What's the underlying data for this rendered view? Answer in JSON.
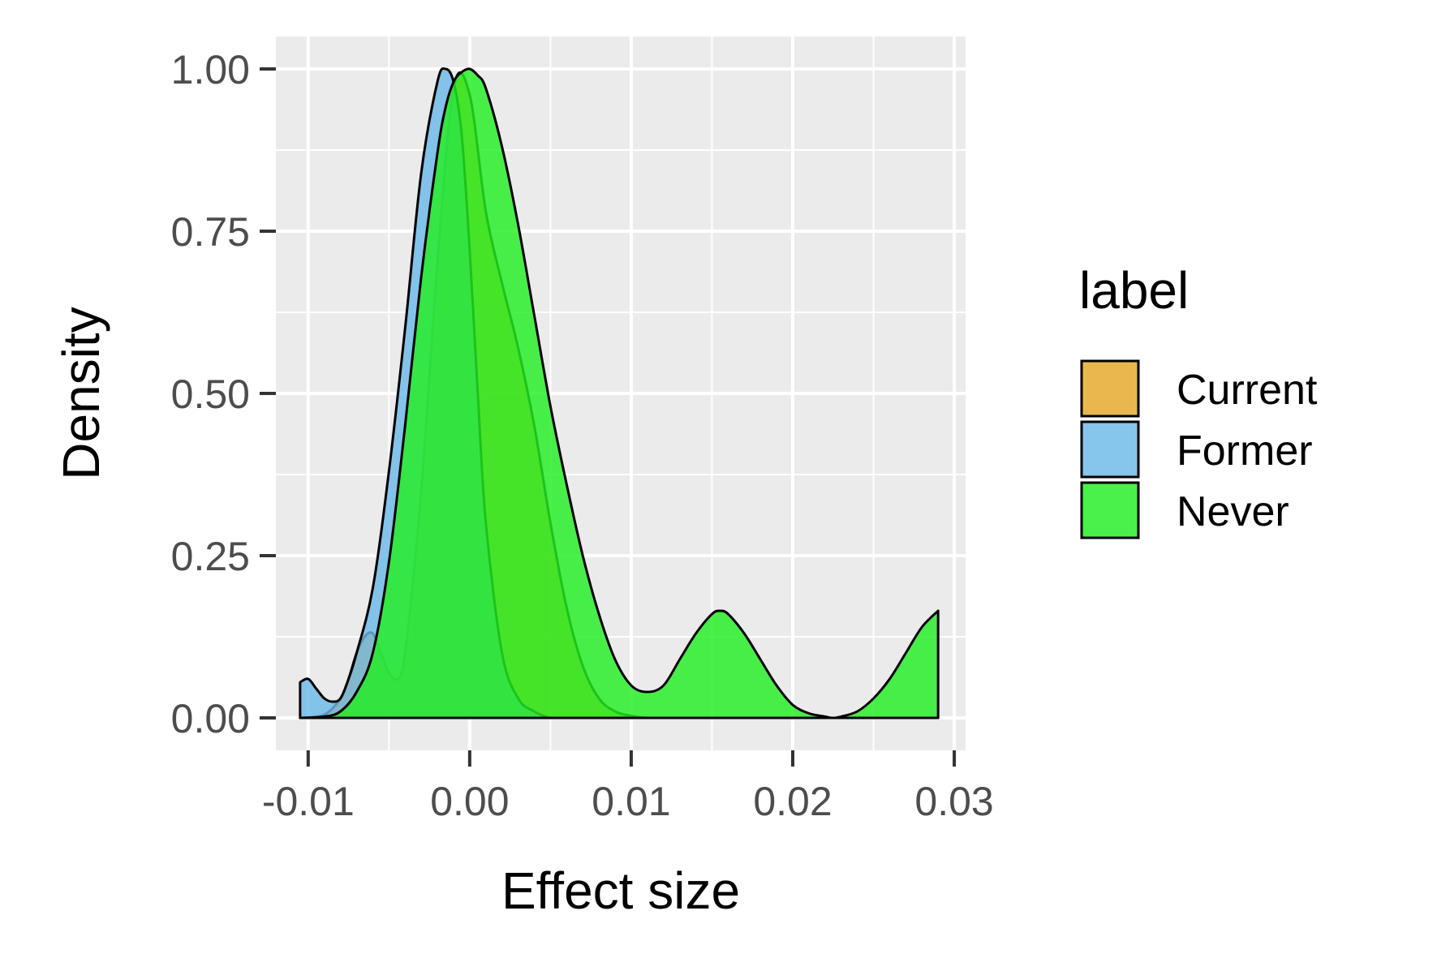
{
  "chart_data": {
    "type": "area",
    "title": "",
    "xlabel": "Effect size",
    "ylabel": "Density",
    "xlim": [
      -0.012,
      0.0307
    ],
    "ylim": [
      -0.05,
      1.05
    ],
    "x_ticks": [
      -0.01,
      0.0,
      0.01,
      0.02,
      0.03
    ],
    "x_tick_labels": [
      "-0.01",
      "0.00",
      "0.01",
      "0.02",
      "0.03"
    ],
    "y_ticks": [
      0.0,
      0.25,
      0.5,
      0.75,
      1.0
    ],
    "y_tick_labels": [
      "0.00",
      "0.25",
      "0.50",
      "0.75",
      "1.00"
    ],
    "x_minor": [
      -0.005,
      0.005,
      0.015,
      0.025
    ],
    "y_minor": [
      0.125,
      0.375,
      0.625,
      0.875
    ],
    "grid": true,
    "legend": {
      "title": "label",
      "position": "right"
    },
    "series": [
      {
        "name": "Current",
        "color": "#E5A728",
        "x": [
          -0.0105,
          -0.009,
          -0.008,
          -0.0075,
          -0.007,
          -0.0065,
          -0.006,
          -0.0055,
          -0.005,
          -0.0045,
          -0.004,
          -0.003,
          -0.002,
          -0.001,
          0.0,
          0.001,
          0.002,
          0.003,
          0.004,
          0.005,
          0.006,
          0.007,
          0.008,
          0.009,
          0.01,
          0.011,
          0.012
        ],
        "values": [
          0.0,
          0.005,
          0.03,
          0.06,
          0.1,
          0.125,
          0.13,
          0.1,
          0.07,
          0.06,
          0.1,
          0.35,
          0.7,
          0.97,
          0.96,
          0.78,
          0.67,
          0.57,
          0.45,
          0.3,
          0.17,
          0.08,
          0.03,
          0.01,
          0.003,
          0.0,
          0.0
        ]
      },
      {
        "name": "Former",
        "color": "#6BB8E8",
        "x": [
          -0.0105,
          -0.01,
          -0.0095,
          -0.009,
          -0.0085,
          -0.008,
          -0.0075,
          -0.007,
          -0.006,
          -0.005,
          -0.004,
          -0.003,
          -0.002,
          -0.0015,
          -0.001,
          -0.0005,
          0.0,
          0.0005,
          0.001,
          0.002,
          0.003,
          0.004,
          0.005,
          0.006,
          0.007,
          0.008,
          0.009,
          0.01,
          0.011,
          0.012,
          0.013,
          0.014,
          0.015,
          0.016,
          0.018,
          0.02,
          0.024,
          0.029
        ],
        "values": [
          0.055,
          0.06,
          0.045,
          0.03,
          0.025,
          0.03,
          0.06,
          0.1,
          0.2,
          0.38,
          0.6,
          0.84,
          0.98,
          1.0,
          0.98,
          0.9,
          0.72,
          0.5,
          0.3,
          0.1,
          0.03,
          0.01,
          0.0,
          0.0,
          0.0,
          0.0,
          0.0,
          0.0,
          0.0,
          0.0,
          0.0,
          0.0,
          0.0,
          0.0,
          0.0,
          0.0,
          0.0,
          0.0
        ]
      },
      {
        "name": "Never",
        "color": "#22EE22",
        "x": [
          -0.0105,
          -0.009,
          -0.008,
          -0.007,
          -0.006,
          -0.005,
          -0.004,
          -0.003,
          -0.002,
          -0.0015,
          -0.001,
          -0.0005,
          0.0,
          0.0005,
          0.001,
          0.002,
          0.003,
          0.004,
          0.005,
          0.006,
          0.007,
          0.008,
          0.009,
          0.01,
          0.011,
          0.012,
          0.013,
          0.014,
          0.015,
          0.0155,
          0.016,
          0.017,
          0.018,
          0.019,
          0.02,
          0.021,
          0.022,
          0.0225,
          0.023,
          0.024,
          0.025,
          0.026,
          0.027,
          0.028,
          0.029
        ],
        "values": [
          0.0,
          0.002,
          0.01,
          0.04,
          0.1,
          0.24,
          0.45,
          0.68,
          0.87,
          0.94,
          0.98,
          0.995,
          1.0,
          0.99,
          0.97,
          0.88,
          0.76,
          0.62,
          0.48,
          0.36,
          0.25,
          0.16,
          0.09,
          0.05,
          0.04,
          0.05,
          0.09,
          0.13,
          0.16,
          0.165,
          0.16,
          0.13,
          0.09,
          0.05,
          0.02,
          0.007,
          0.002,
          0.0,
          0.002,
          0.01,
          0.03,
          0.06,
          0.1,
          0.14,
          0.165
        ]
      }
    ]
  }
}
